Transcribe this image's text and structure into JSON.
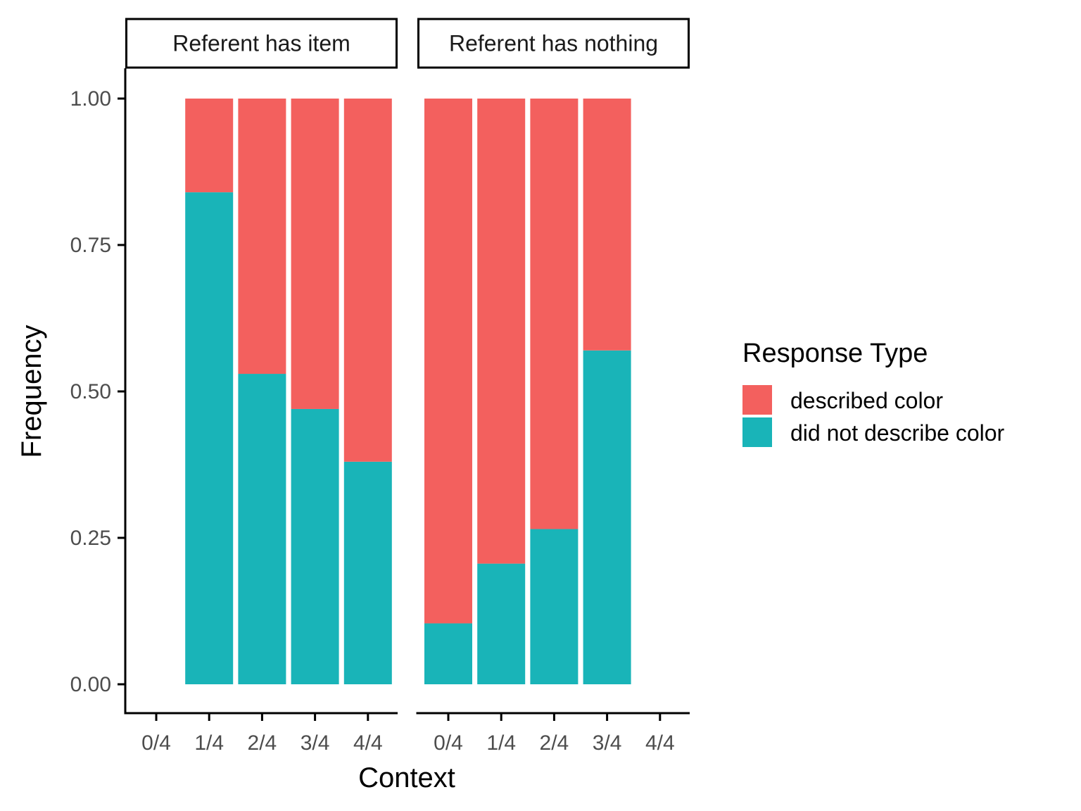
{
  "chart_data": {
    "type": "bar",
    "stacked": true,
    "xlabel": "Context",
    "ylabel": "Frequency",
    "ylim": [
      0,
      1
    ],
    "y_ticks": [
      "0.00",
      "0.25",
      "0.50",
      "0.75",
      "1.00"
    ],
    "categories": [
      "0/4",
      "1/4",
      "2/4",
      "3/4",
      "4/4"
    ],
    "legend": {
      "title": "Response Type",
      "position": "right",
      "entries": [
        {
          "label": "described color",
          "color": "#F3605E"
        },
        {
          "label": "did not describe color",
          "color": "#19B4B8"
        }
      ]
    },
    "panels": [
      {
        "title": "Referent has item",
        "series": [
          {
            "name": "did not describe color",
            "color": "#19B4B8",
            "values": [
              null,
              0.84,
              0.53,
              0.47,
              0.38
            ]
          },
          {
            "name": "described color",
            "color": "#F3605E",
            "values": [
              null,
              0.16,
              0.47,
              0.53,
              0.62
            ]
          }
        ]
      },
      {
        "title": "Referent has nothing",
        "series": [
          {
            "name": "did not describe color",
            "color": "#19B4B8",
            "values": [
              0.104,
              0.206,
              0.265,
              0.57,
              null
            ]
          },
          {
            "name": "described color",
            "color": "#F3605E",
            "values": [
              0.896,
              0.794,
              0.735,
              0.43,
              null
            ]
          }
        ]
      }
    ]
  }
}
